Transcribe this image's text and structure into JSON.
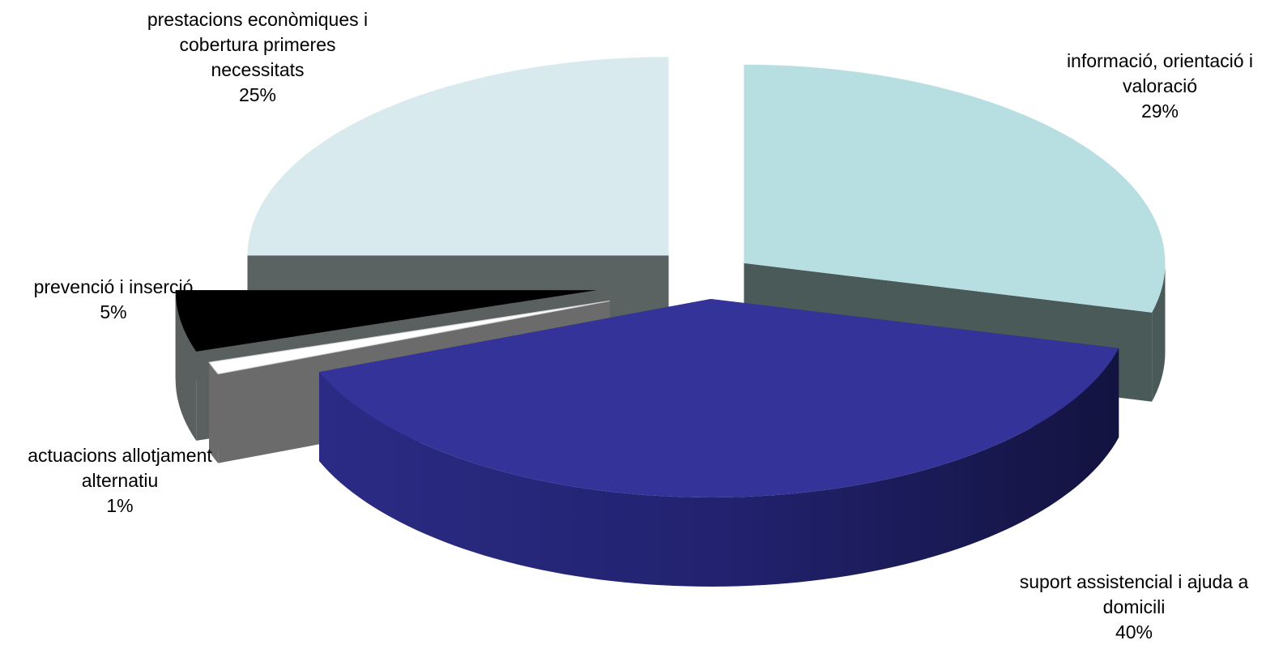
{
  "chart_data": {
    "type": "pie",
    "variant": "3d-exploded",
    "title": "",
    "legend": "none",
    "slices": [
      {
        "label_lines": [
          "informació, orientació i",
          "valoració"
        ],
        "percent_label": "29%",
        "value": 29,
        "color": "#B7DEE1"
      },
      {
        "label_lines": [
          "suport assistencial i ajuda a",
          "domicili"
        ],
        "percent_label": "40%",
        "value": 40,
        "color": "#333399"
      },
      {
        "label_lines": [
          "actuacions allotjament",
          "alternatiu"
        ],
        "percent_label": "1%",
        "value": 1,
        "color": "#FFFFFF"
      },
      {
        "label_lines": [
          "prevenció i inserció"
        ],
        "percent_label": "5%",
        "value": 5,
        "color": "#000000"
      },
      {
        "label_lines": [
          "prestacions econòmiques i",
          "cobertura primeres",
          "necessitats"
        ],
        "percent_label": "25%",
        "value": 25,
        "color": "#D8EAED"
      }
    ]
  }
}
